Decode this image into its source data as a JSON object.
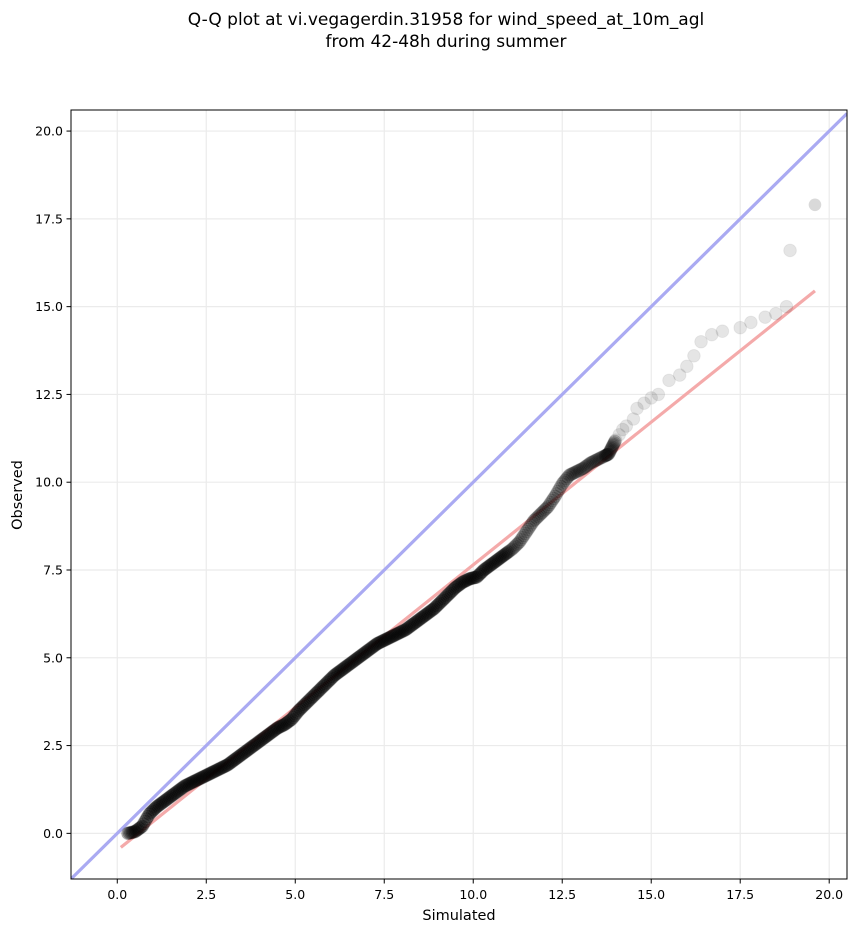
{
  "title_lines": [
    "Q-Q plot at vi.vegagerdin.31958 for wind_speed_at_10m_agl",
    "from 42-48h during summer"
  ],
  "chart_data": {
    "type": "scatter",
    "title": "Q-Q plot at vi.vegagerdin.31958 for wind_speed_at_10m_agl from 42-48h during summer",
    "xlabel": "Simulated",
    "ylabel": "Observed",
    "xlim": [
      -1.3,
      20.5
    ],
    "ylim": [
      -1.3,
      20.6
    ],
    "x_ticks": [
      "0.0",
      "2.5",
      "5.0",
      "7.5",
      "10.0",
      "12.5",
      "15.0",
      "17.5",
      "20.0"
    ],
    "y_ticks": [
      "0.0",
      "2.5",
      "5.0",
      "7.5",
      "10.0",
      "12.5",
      "15.0",
      "17.5",
      "20.0"
    ],
    "grid": true,
    "colors": {
      "identity_line": "#aaaaf2",
      "fit_line": "#f4aaaa",
      "points": "#000000"
    },
    "identity_line": {
      "x": [
        -1.3,
        20.5
      ],
      "y": [
        -1.3,
        20.5
      ]
    },
    "fit_line": {
      "x": [
        0.1,
        19.6
      ],
      "y": [
        -0.4,
        15.45
      ]
    },
    "points": {
      "x": [
        0.3,
        0.5,
        0.7,
        0.9,
        1.1,
        1.3,
        1.5,
        1.7,
        1.9,
        2.1,
        2.3,
        2.5,
        2.7,
        2.9,
        3.1,
        3.3,
        3.5,
        3.7,
        3.9,
        4.1,
        4.3,
        4.5,
        4.7,
        4.9,
        5.1,
        5.3,
        5.5,
        5.7,
        5.9,
        6.1,
        6.3,
        6.5,
        6.7,
        6.9,
        7.1,
        7.3,
        7.5,
        7.7,
        7.9,
        8.1,
        8.3,
        8.5,
        8.7,
        8.9,
        9.1,
        9.3,
        9.5,
        9.7,
        9.9,
        10.1,
        10.3,
        10.5,
        10.7,
        10.9,
        11.1,
        11.3,
        11.5,
        11.7,
        11.9,
        12.1,
        12.3,
        12.5,
        12.7,
        12.9,
        13.1,
        13.3,
        13.5,
        13.7,
        13.8,
        13.9,
        14.0,
        14.1,
        14.2,
        14.3,
        14.5,
        14.6,
        14.8,
        15.0,
        15.2,
        15.5,
        15.8,
        16.0,
        16.2,
        16.4,
        16.7,
        17.0,
        17.5,
        17.8,
        18.2,
        18.5,
        18.8,
        18.9,
        19.6
      ],
      "y": [
        0.0,
        0.05,
        0.2,
        0.55,
        0.75,
        0.9,
        1.05,
        1.2,
        1.35,
        1.45,
        1.55,
        1.65,
        1.75,
        1.85,
        1.95,
        2.1,
        2.25,
        2.4,
        2.55,
        2.7,
        2.85,
        3.0,
        3.1,
        3.25,
        3.5,
        3.7,
        3.9,
        4.1,
        4.3,
        4.5,
        4.65,
        4.8,
        4.95,
        5.1,
        5.25,
        5.4,
        5.5,
        5.6,
        5.7,
        5.8,
        5.95,
        6.1,
        6.25,
        6.4,
        6.6,
        6.8,
        7.0,
        7.15,
        7.25,
        7.3,
        7.5,
        7.65,
        7.8,
        7.95,
        8.1,
        8.3,
        8.6,
        8.9,
        9.1,
        9.3,
        9.6,
        9.95,
        10.2,
        10.3,
        10.4,
        10.55,
        10.65,
        10.75,
        10.8,
        11.0,
        11.2,
        11.35,
        11.5,
        11.6,
        11.8,
        12.1,
        12.25,
        12.4,
        12.5,
        12.9,
        13.05,
        13.3,
        13.6,
        14.0,
        14.2,
        14.3,
        14.4,
        14.55,
        14.7,
        14.8,
        15.0,
        16.6,
        17.9
      ]
    }
  }
}
